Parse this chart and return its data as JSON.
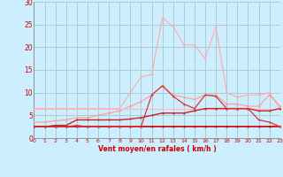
{
  "x": [
    0,
    1,
    2,
    3,
    4,
    5,
    6,
    7,
    8,
    9,
    10,
    11,
    12,
    13,
    14,
    15,
    16,
    17,
    18,
    19,
    20,
    21,
    22,
    23
  ],
  "series_rafales_max": [
    6.5,
    6.5,
    6.5,
    6.5,
    6.5,
    6.5,
    6.5,
    6.5,
    6.5,
    10.0,
    13.5,
    14.0,
    26.5,
    24.5,
    20.5,
    20.5,
    17.5,
    24.5,
    10.0,
    9.0,
    9.5,
    9.5,
    10.0,
    6.5
  ],
  "series_rising": [
    3.5,
    3.5,
    3.8,
    4.0,
    4.5,
    4.5,
    5.0,
    5.5,
    6.0,
    7.0,
    8.0,
    9.5,
    11.5,
    9.5,
    9.0,
    8.5,
    9.5,
    9.5,
    7.5,
    7.5,
    7.0,
    7.0,
    9.5,
    7.0
  ],
  "series_flat_light": [
    6.5,
    6.5,
    6.5,
    6.5,
    6.5,
    6.5,
    6.5,
    6.5,
    6.5,
    6.5,
    6.5,
    6.5,
    6.5,
    6.5,
    6.5,
    6.5,
    6.5,
    6.5,
    6.5,
    6.5,
    6.5,
    6.5,
    6.5,
    6.5
  ],
  "series_vent_moyen": [
    2.5,
    2.5,
    2.8,
    2.8,
    4.0,
    4.0,
    4.0,
    4.0,
    4.0,
    4.2,
    4.5,
    5.0,
    5.5,
    5.5,
    5.5,
    6.0,
    6.5,
    6.5,
    6.5,
    6.5,
    6.5,
    6.0,
    6.0,
    6.5
  ],
  "series_flat_dark": [
    2.5,
    2.5,
    2.5,
    2.5,
    2.5,
    2.5,
    2.5,
    2.5,
    2.5,
    2.5,
    2.5,
    2.5,
    2.5,
    2.5,
    2.5,
    2.5,
    2.5,
    2.5,
    2.5,
    2.5,
    2.5,
    2.5,
    2.5,
    2.5
  ],
  "series_bottom": [
    2.5,
    2.5,
    2.5,
    2.5,
    2.8,
    2.5,
    2.5,
    2.5,
    2.5,
    2.5,
    2.5,
    9.5,
    11.5,
    9.2,
    7.5,
    6.5,
    9.5,
    9.2,
    6.5,
    6.5,
    6.5,
    4.0,
    3.5,
    2.5
  ],
  "bg_color": "#cceeff",
  "grid_color": "#aacccc",
  "color_rafales": "#ffaaaa",
  "color_rising": "#ff9999",
  "color_flat_light": "#ffbbbb",
  "color_vent": "#cc2222",
  "color_flat_dark": "#cc0000",
  "color_bottom": "#dd3333",
  "xlabel": "Vent moyen/en rafales ( km/h )",
  "ylim": [
    0,
    30
  ],
  "xlim": [
    0,
    23
  ],
  "yticks": [
    0,
    5,
    10,
    15,
    20,
    25,
    30
  ],
  "xticks": [
    0,
    1,
    2,
    3,
    4,
    5,
    6,
    7,
    8,
    9,
    10,
    11,
    12,
    13,
    14,
    15,
    16,
    17,
    18,
    19,
    20,
    21,
    22,
    23
  ]
}
